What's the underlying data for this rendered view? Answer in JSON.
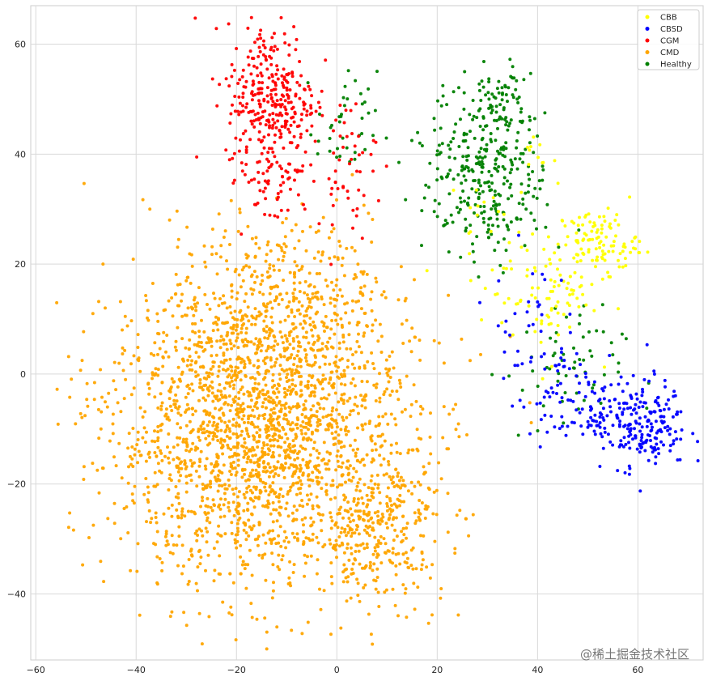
{
  "chart_data": {
    "type": "scatter",
    "title": "",
    "xlabel": "",
    "ylabel": "",
    "xlim": [
      -61,
      73
    ],
    "ylim": [
      -52,
      67
    ],
    "xticks": [
      "−60",
      "−40",
      "−20",
      "0",
      "20",
      "40",
      "60"
    ],
    "xtick_values": [
      -60,
      -40,
      -20,
      0,
      20,
      40,
      60
    ],
    "yticks": [
      "−40",
      "−20",
      "0",
      "20",
      "40",
      "60"
    ],
    "ytick_values": [
      -40,
      -20,
      0,
      20,
      40,
      60
    ],
    "grid": true,
    "legend_position": "top-right",
    "series": [
      {
        "name": "CBB",
        "color": "#ffff00",
        "clusters": [
          {
            "cx": 52,
            "cy": 24,
            "sx": 4,
            "sy": 3,
            "n": 110
          },
          {
            "cx": 42,
            "cy": 14,
            "sx": 5,
            "sy": 5,
            "n": 80
          },
          {
            "cx": 28,
            "cy": 25,
            "sx": 5,
            "sy": 7,
            "n": 25
          },
          {
            "cx": 40,
            "cy": 40,
            "sx": 2,
            "sy": 2,
            "n": 10
          }
        ]
      },
      {
        "name": "CBSD",
        "color": "#0000ff",
        "clusters": [
          {
            "cx": 60,
            "cy": -9,
            "sx": 5,
            "sy": 4,
            "n": 220
          },
          {
            "cx": 48,
            "cy": -4,
            "sx": 6,
            "sy": 4,
            "n": 70
          },
          {
            "cx": 38,
            "cy": 8,
            "sx": 4,
            "sy": 7,
            "n": 40
          }
        ]
      },
      {
        "name": "CGM",
        "color": "#ff0000",
        "clusters": [
          {
            "cx": -13,
            "cy": 50,
            "sx": 4.5,
            "sy": 7,
            "n": 320
          },
          {
            "cx": -13,
            "cy": 35,
            "sx": 4,
            "sy": 4,
            "n": 50
          },
          {
            "cx": 2,
            "cy": 38,
            "sx": 3,
            "sy": 6,
            "n": 50
          }
        ]
      },
      {
        "name": "CMD",
        "color": "#ffa500",
        "clusters": [
          {
            "cx": -15,
            "cy": -10,
            "sx": 15,
            "sy": 14,
            "n": 2300
          },
          {
            "cx": 8,
            "cy": -28,
            "sx": 7,
            "sy": 7,
            "n": 300
          },
          {
            "cx": -10,
            "cy": 14,
            "sx": 8,
            "sy": 7,
            "n": 250
          }
        ]
      },
      {
        "name": "Healthy",
        "color": "#008000",
        "clusters": [
          {
            "cx": 30,
            "cy": 37,
            "sx": 6,
            "sy": 8,
            "n": 330
          },
          {
            "cx": 33,
            "cy": 50,
            "sx": 2.5,
            "sy": 3,
            "n": 40
          },
          {
            "cx": 45,
            "cy": 0,
            "sx": 6,
            "sy": 6,
            "n": 60
          },
          {
            "cx": 2,
            "cy": 45,
            "sx": 3,
            "sy": 5,
            "n": 40
          }
        ]
      }
    ]
  },
  "watermark": "@稀土掘金技术社区"
}
